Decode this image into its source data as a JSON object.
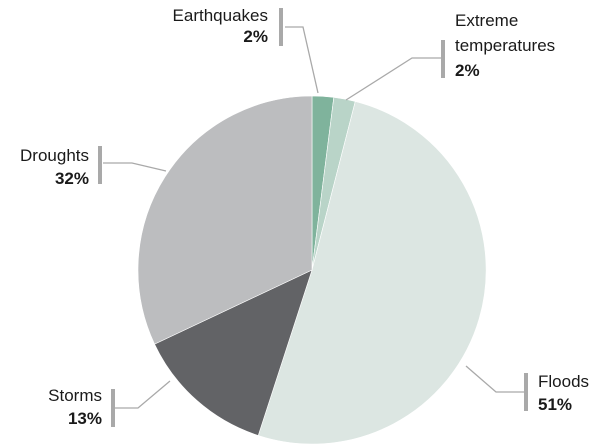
{
  "chart_data": {
    "type": "pie",
    "title": "",
    "slices": [
      {
        "label": "Earthquakes",
        "value": 2,
        "value_label": "2%",
        "color": "#7fb39c"
      },
      {
        "label": "Extreme temperatures",
        "value": 2,
        "value_label": "2%",
        "color": "#b9d4c8"
      },
      {
        "label": "Floods",
        "value": 51,
        "value_label": "51%",
        "color": "#dce6e2"
      },
      {
        "label": "Storms",
        "value": 13,
        "value_label": "13%",
        "color": "#626366"
      },
      {
        "label": "Droughts",
        "value": 32,
        "value_label": "32%",
        "color": "#bcbdbf"
      }
    ]
  }
}
